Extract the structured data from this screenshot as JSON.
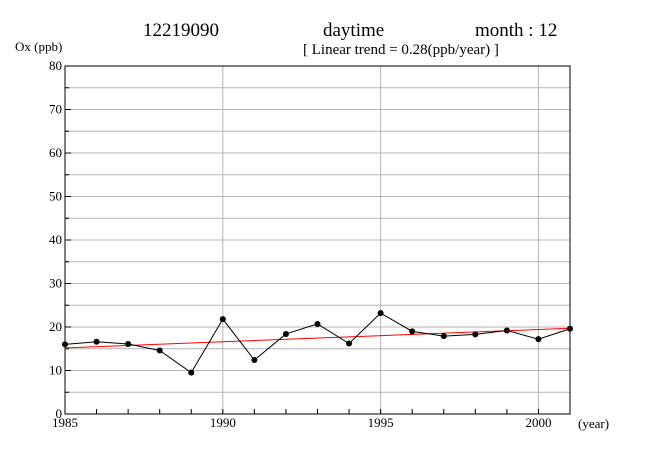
{
  "header": {
    "station": "12219090",
    "period": "daytime",
    "month": "month : 12",
    "trend": "[ Linear trend = 0.28(ppb/year) ]"
  },
  "chart_data": {
    "type": "line",
    "title": "",
    "ylabel": "Ox (ppb)",
    "xlabel": "(year)",
    "xlim": [
      1985,
      2001
    ],
    "ylim": [
      0,
      80
    ],
    "xticks": [
      1985,
      1990,
      1995,
      2000
    ],
    "yticks": [
      0,
      10,
      20,
      30,
      40,
      50,
      60,
      70,
      80
    ],
    "grid": true,
    "series": [
      {
        "color": "#000000",
        "x": [
          1985,
          1986,
          1987,
          1988,
          1989,
          1990,
          1991,
          1992,
          1993,
          1994,
          1995,
          1996,
          1997,
          1998,
          1999,
          2000,
          2001
        ],
        "values": [
          16.0,
          16.6,
          16.1,
          14.6,
          9.5,
          21.8,
          12.4,
          18.4,
          20.7,
          16.2,
          23.2,
          19.0,
          17.9,
          18.3,
          19.2,
          17.2,
          19.6
        ]
      }
    ],
    "trend_line": {
      "color": "#ff0000",
      "slope": 0.28,
      "x": [
        1985,
        2001
      ],
      "values": [
        15.2,
        19.7
      ]
    }
  }
}
